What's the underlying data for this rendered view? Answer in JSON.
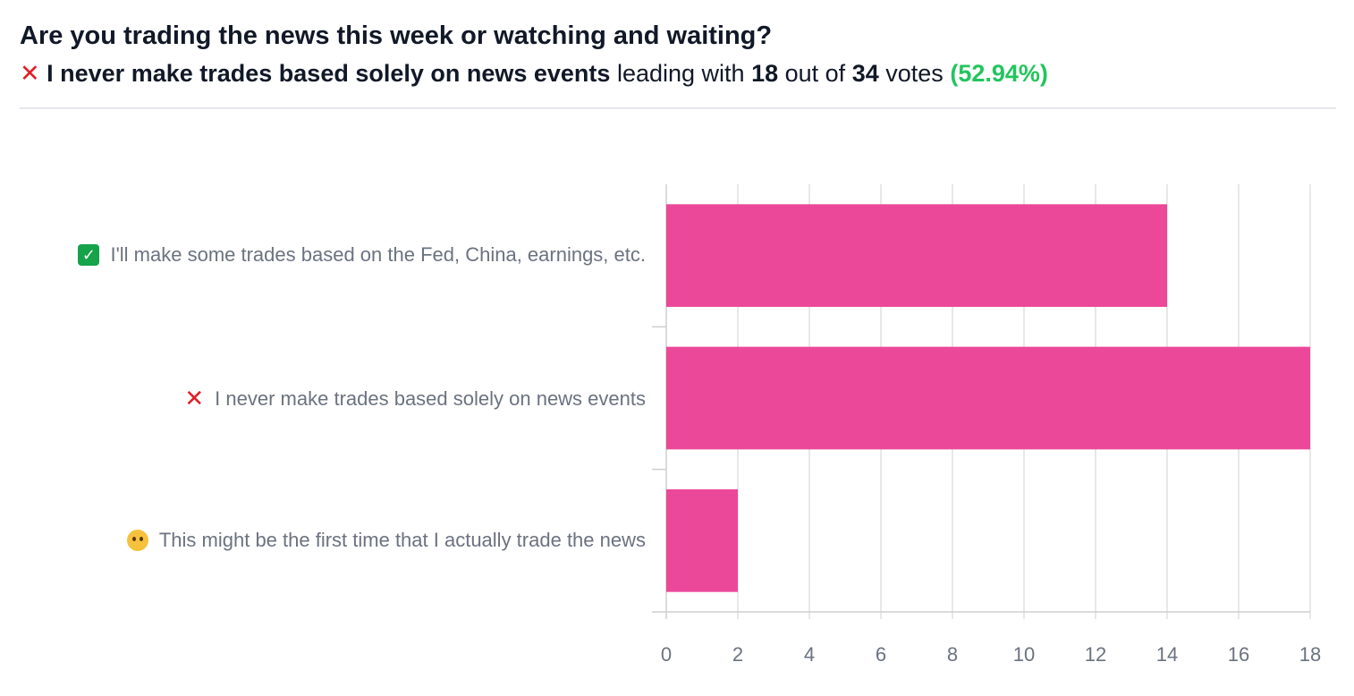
{
  "poll": {
    "question": "Are you trading the news this week or watching and waiting?",
    "leader_icon": "cross-mark-icon",
    "leader_label": "I never make trades based solely on news events",
    "leading_with": "leading with",
    "leader_votes": "18",
    "out_of": "out of",
    "total_votes": "34",
    "votes_word": "votes",
    "leader_percent": "(52.94%)"
  },
  "colors": {
    "bar": "#ec4899",
    "grid": "#e0e0e0",
    "axis": "#cfcfcf",
    "tick_text": "#6b7280",
    "percent": "#22c55e",
    "cross": "#e11d24"
  },
  "chart_data": {
    "type": "bar",
    "orientation": "horizontal",
    "categories": [
      "I'll make some trades based on the Fed, China, earnings, etc.",
      "I never make trades based solely on news events",
      "This might be the first time that I actually trade the news"
    ],
    "category_icons": [
      "check-mark-icon",
      "cross-mark-icon",
      "thinking-face-icon"
    ],
    "values": [
      14,
      18,
      2
    ],
    "xlim": [
      0,
      18
    ],
    "xticks": [
      0,
      2,
      4,
      6,
      8,
      10,
      12,
      14,
      16,
      18
    ],
    "grid": true
  }
}
